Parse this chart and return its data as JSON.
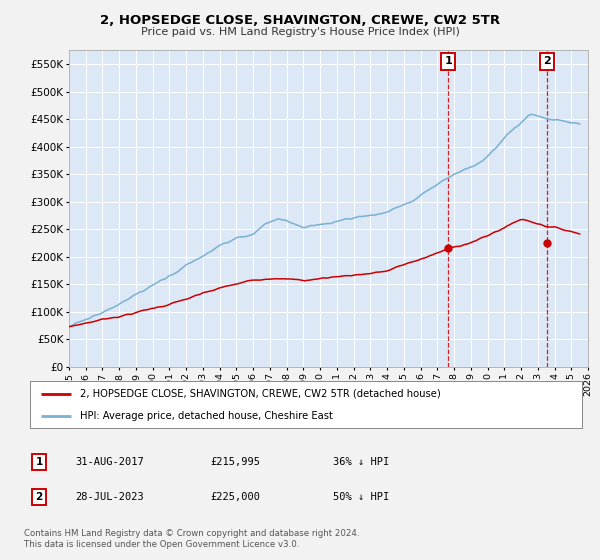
{
  "title": "2, HOPSEDGE CLOSE, SHAVINGTON, CREWE, CW2 5TR",
  "subtitle": "Price paid vs. HM Land Registry's House Price Index (HPI)",
  "ylabel_ticks": [
    0,
    50000,
    100000,
    150000,
    200000,
    250000,
    300000,
    350000,
    400000,
    450000,
    500000,
    550000
  ],
  "ylabel_labels": [
    "£0",
    "£50K",
    "£100K",
    "£150K",
    "£200K",
    "£250K",
    "£300K",
    "£350K",
    "£400K",
    "£450K",
    "£500K",
    "£550K"
  ],
  "xlim": [
    1995,
    2026
  ],
  "ylim": [
    0,
    575000
  ],
  "background_color": "#f2f2f2",
  "plot_bg_color": "#dce8f5",
  "grid_color": "#ffffff",
  "hpi_color": "#7ab0d4",
  "price_color": "#cc0000",
  "sale1_price": 215995,
  "sale1_year": 2017.66,
  "sale2_price": 225000,
  "sale2_year": 2023.57,
  "legend_label_red": "2, HOPSEDGE CLOSE, SHAVINGTON, CREWE, CW2 5TR (detached house)",
  "legend_label_blue": "HPI: Average price, detached house, Cheshire East",
  "footer": "Contains HM Land Registry data © Crown copyright and database right 2024.\nThis data is licensed under the Open Government Licence v3.0.",
  "table_row1": [
    "1",
    "31-AUG-2017",
    "£215,995",
    "36% ↓ HPI"
  ],
  "table_row2": [
    "2",
    "28-JUL-2023",
    "£225,000",
    "50% ↓ HPI"
  ]
}
